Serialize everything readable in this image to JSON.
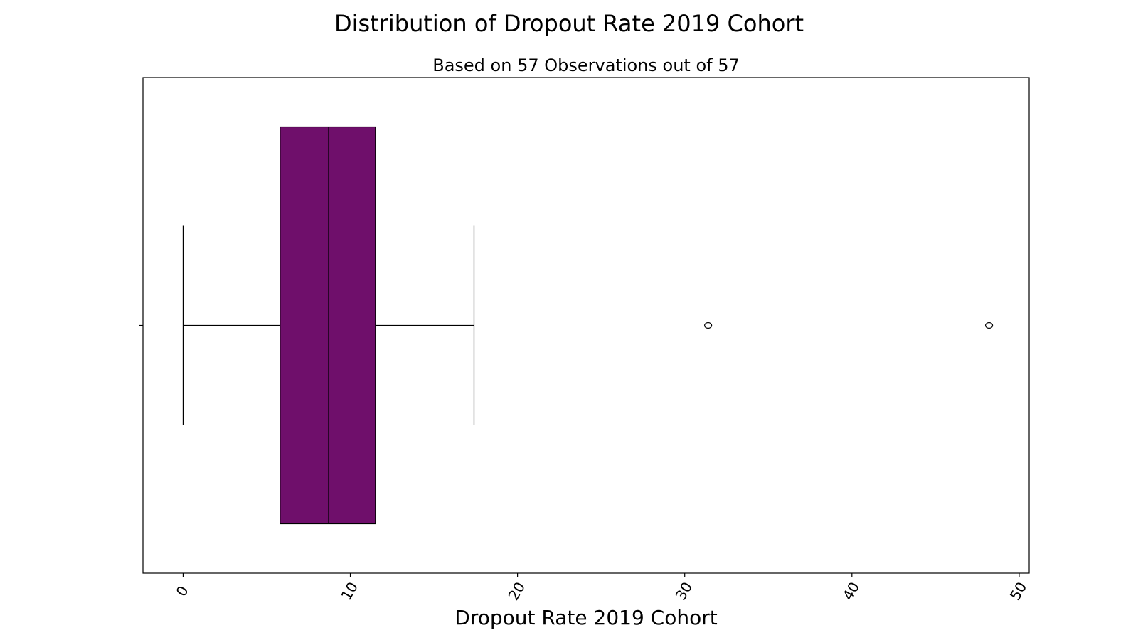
{
  "chart_data": {
    "type": "box",
    "orientation": "horizontal",
    "title": "Distribution of Dropout Rate 2019 Cohort",
    "subtitle": "Based on 57 Observations out of 57",
    "xlabel": "Dropout Rate 2019 Cohort",
    "ylabel": "",
    "xlim": [
      -2.4,
      50.6
    ],
    "xticks": [
      0,
      10,
      20,
      30,
      40,
      50
    ],
    "xtick_labels": [
      "0",
      "10",
      "20",
      "30",
      "40",
      "50"
    ],
    "xtick_rotation_deg": -60,
    "grid": false,
    "legend": "none",
    "box_color": "#6f0f6b",
    "edge_color": "#000000",
    "stats": {
      "whisker_low": 0.0,
      "q1": 5.8,
      "median": 8.7,
      "q3": 11.5,
      "whisker_high": 17.4
    },
    "outliers": [
      31.4,
      48.2
    ]
  }
}
